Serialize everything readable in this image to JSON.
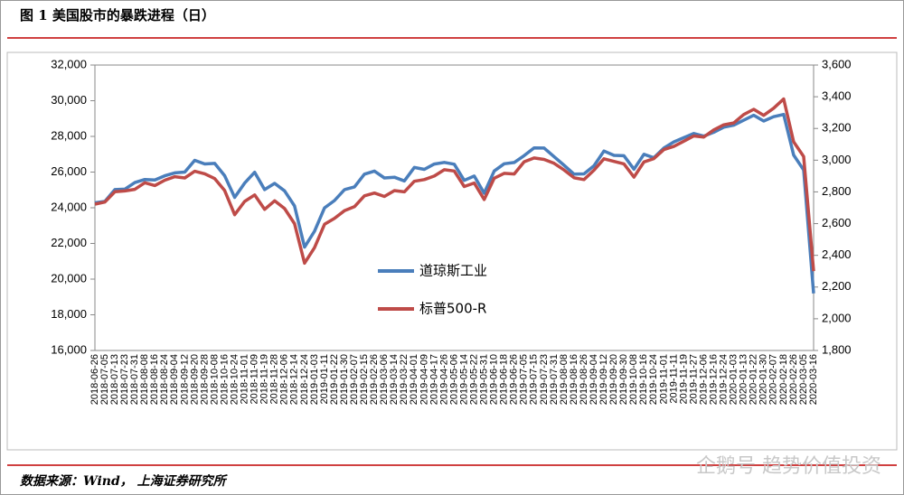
{
  "chart_data": {
    "type": "line",
    "title": "图 1    美国股市的暴跌进程（日）",
    "source": "数据来源：Wind，  上海证券研究所",
    "watermark": "企鹅号 趋势价值投资",
    "categories": [
      "2018-06-26",
      "2018-07-05",
      "2018-07-13",
      "2018-07-23",
      "2018-07-31",
      "2018-08-08",
      "2018-08-16",
      "2018-08-24",
      "2018-09-04",
      "2018-09-12",
      "2018-09-20",
      "2018-09-28",
      "2018-10-08",
      "2018-10-16",
      "2018-10-24",
      "2018-11-01",
      "2018-11-09",
      "2018-11-19",
      "2018-11-28",
      "2018-12-06",
      "2018-12-14",
      "2018-12-24",
      "2019-01-03",
      "2019-01-11",
      "2019-01-22",
      "2019-01-30",
      "2019-02-07",
      "2019-02-15",
      "2019-02-26",
      "2019-03-06",
      "2019-03-14",
      "2019-03-22",
      "2019-04-01",
      "2019-04-09",
      "2019-04-17",
      "2019-04-26",
      "2019-05-06",
      "2019-05-14",
      "2019-05-22",
      "2019-05-31",
      "2019-06-10",
      "2019-06-18",
      "2019-06-26",
      "2019-07-05",
      "2019-07-15",
      "2019-07-23",
      "2019-07-31",
      "2019-08-08",
      "2019-08-16",
      "2019-08-26",
      "2019-09-04",
      "2019-09-12",
      "2019-09-20",
      "2019-09-30",
      "2019-10-08",
      "2019-10-16",
      "2019-10-24",
      "2019-11-01",
      "2019-11-11",
      "2019-11-19",
      "2019-11-27",
      "2019-12-06",
      "2019-12-16",
      "2019-12-24",
      "2020-01-03",
      "2020-01-13",
      "2020-01-22",
      "2020-01-30",
      "2020-02-07",
      "2020-02-18",
      "2020-02-26",
      "2020-03-05",
      "2020-03-16"
    ],
    "series": [
      {
        "name": "道琼斯工业",
        "color": "#4a7ebb",
        "values": [
          24280,
          24356,
          25019,
          25044,
          25415,
          25583,
          25558,
          25790,
          25952,
          25998,
          26657,
          26458,
          26486,
          25798,
          24583,
          25380,
          25989,
          25017,
          25366,
          24947,
          24100,
          21792,
          22686,
          23996,
          24404,
          25014,
          25169,
          25883,
          26057,
          25673,
          25709,
          25502,
          26258,
          26150,
          26449,
          26543,
          26438,
          25532,
          25776,
          24815,
          26062,
          26465,
          26536,
          26922,
          27359,
          27349,
          26864,
          26378,
          25886,
          25898,
          26355,
          27182,
          26935,
          26917,
          26164,
          26999,
          26806,
          27347,
          27691,
          27934,
          28164,
          28015,
          28235,
          28515,
          28634,
          28907,
          29186,
          28859,
          29102,
          29232,
          26957,
          26121,
          19200
        ]
      },
      {
        "name": "标普500-R",
        "color": "#be4b48",
        "axis": "y2",
        "values": [
          2723,
          2736,
          2801,
          2806,
          2816,
          2858,
          2840,
          2874,
          2896,
          2888,
          2930,
          2914,
          2884,
          2809,
          2656,
          2740,
          2781,
          2690,
          2744,
          2695,
          2600,
          2351,
          2448,
          2596,
          2633,
          2681,
          2707,
          2775,
          2793,
          2771,
          2808,
          2800,
          2867,
          2878,
          2900,
          2940,
          2932,
          2834,
          2856,
          2752,
          2886,
          2917,
          2913,
          2990,
          3014,
          3005,
          2980,
          2938,
          2889,
          2878,
          2937,
          3009,
          2992,
          2977,
          2893,
          2989,
          3010,
          3067,
          3087,
          3120,
          3153,
          3146,
          3191,
          3223,
          3235,
          3288,
          3321,
          3283,
          3328,
          3386,
          3116,
          3023,
          2300
        ]
      }
    ],
    "ylim": [
      16000,
      32000
    ],
    "yticks": [
      {
        "value": 16000,
        "label": "16,000"
      },
      {
        "value": 18000,
        "label": "18,000"
      },
      {
        "value": 20000,
        "label": "20,000"
      },
      {
        "value": 22000,
        "label": "22,000"
      },
      {
        "value": 24000,
        "label": "24,000"
      },
      {
        "value": 26000,
        "label": "26,000"
      },
      {
        "value": 28000,
        "label": "28,000"
      },
      {
        "value": 30000,
        "label": "30,000"
      },
      {
        "value": 32000,
        "label": "32,000"
      }
    ],
    "y2lim": [
      1800,
      3600
    ],
    "y2ticks": [
      {
        "value": 1800,
        "label": "1,800"
      },
      {
        "value": 2000,
        "label": "2,000"
      },
      {
        "value": 2200,
        "label": "2,200"
      },
      {
        "value": 2400,
        "label": "2,400"
      },
      {
        "value": 2600,
        "label": "2,600"
      },
      {
        "value": 2800,
        "label": "2,800"
      },
      {
        "value": 3000,
        "label": "3,000"
      },
      {
        "value": 3200,
        "label": "3,200"
      },
      {
        "value": 3400,
        "label": "3,400"
      },
      {
        "value": 3600,
        "label": "3,600"
      }
    ]
  }
}
